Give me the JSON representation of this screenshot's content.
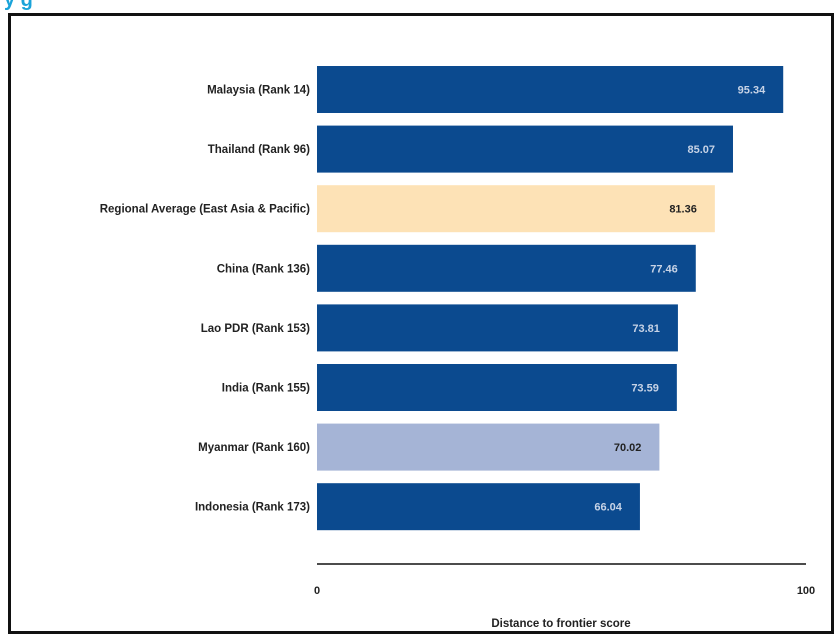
{
  "page": {
    "top_title": "y                                                                           g"
  },
  "chart_data": {
    "type": "bar",
    "orientation": "horizontal",
    "categories": [
      "Malaysia (Rank 14)",
      "Thailand (Rank 96)",
      "Regional Average (East Asia & Pacific)",
      "China (Rank 136)",
      "Lao PDR (Rank 153)",
      "India (Rank 155)",
      "Myanmar (Rank 160)",
      "Indonesia (Rank 173)"
    ],
    "values": [
      95.34,
      85.07,
      81.36,
      77.46,
      73.81,
      73.59,
      70.02,
      66.04
    ],
    "value_labels": [
      "95.34",
      "85.07",
      "81.36",
      "77.46",
      "73.81",
      "73.59",
      "70.02",
      "66.04"
    ],
    "bar_colors": [
      "#0b4a8f",
      "#0b4a8f",
      "#fde2b6",
      "#0b4a8f",
      "#0b4a8f",
      "#0b4a8f",
      "#a5b4d6",
      "#0b4a8f"
    ],
    "label_colors": [
      "#c7d3e6",
      "#c7d3e6",
      "#222222",
      "#c7d3e6",
      "#c7d3e6",
      "#c7d3e6",
      "#222222",
      "#c7d3e6"
    ],
    "xlim": [
      0,
      100
    ],
    "xticks": [
      "0",
      "100"
    ],
    "xlabel": "Distance to frontier score",
    "title": "",
    "grid": false,
    "legend": "none"
  }
}
